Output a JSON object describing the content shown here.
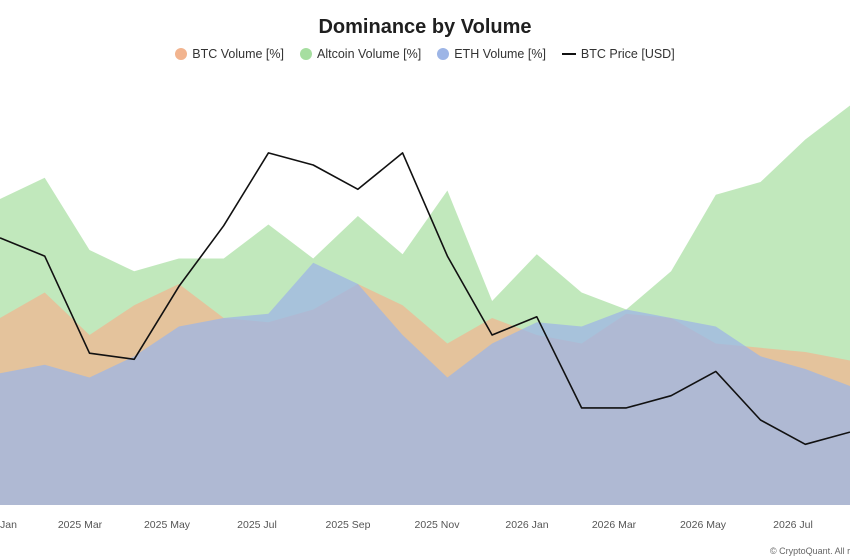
{
  "chart_data": {
    "type": "area",
    "title": "Dominance by Volume",
    "watermark": "CryptoQuant",
    "copyright": "© CryptoQuant. All ri",
    "x_tick_labels": [
      "Jan",
      "2025 Mar",
      "2025 May",
      "2025 Jul",
      "2025 Sep",
      "2025 Nov",
      "2026 Jan",
      "2026 Mar",
      "2026 May",
      "2026 Jul"
    ],
    "x": [
      "2025-01",
      "2025-02",
      "2025-03",
      "2025-04",
      "2025-05",
      "2025-06",
      "2025-07",
      "2025-08",
      "2025-09",
      "2025-10",
      "2025-11",
      "2025-12",
      "2026-01",
      "2026-02",
      "2026-03",
      "2026-04",
      "2026-05",
      "2026-06",
      "2026-07",
      "2026-08"
    ],
    "y_left_range": [
      0,
      100
    ],
    "y_right_range": [
      60000,
      130000
    ],
    "grid": false,
    "legend_position": "top-center",
    "series": [
      {
        "name": "BTC Volume [%]",
        "kind": "area",
        "color": "#f2b48f",
        "values": [
          44,
          50,
          40,
          47,
          52,
          44,
          43,
          46,
          52,
          47,
          38,
          44,
          40,
          38,
          45,
          44,
          38,
          37,
          36,
          34
        ]
      },
      {
        "name": "Altcoin Volume [%]",
        "kind": "area",
        "color": "#a6dea0",
        "values": [
          72,
          77,
          60,
          55,
          58,
          58,
          66,
          58,
          68,
          59,
          74,
          48,
          59,
          50,
          46,
          55,
          73,
          76,
          86,
          94
        ]
      },
      {
        "name": "ETH Volume [%]",
        "kind": "area",
        "color": "#9db5e6",
        "values": [
          31,
          33,
          30,
          35,
          42,
          44,
          45,
          57,
          52,
          40,
          30,
          38,
          43,
          42,
          46,
          44,
          42,
          35,
          32,
          28
        ]
      },
      {
        "name": "BTC Price [USD]",
        "kind": "line",
        "color": "#111111",
        "values": [
          104000,
          101000,
          85000,
          84000,
          96000,
          106000,
          118000,
          116000,
          112000,
          118000,
          101000,
          88000,
          91000,
          76000,
          76000,
          78000,
          82000,
          74000,
          70000,
          72000
        ]
      }
    ]
  }
}
